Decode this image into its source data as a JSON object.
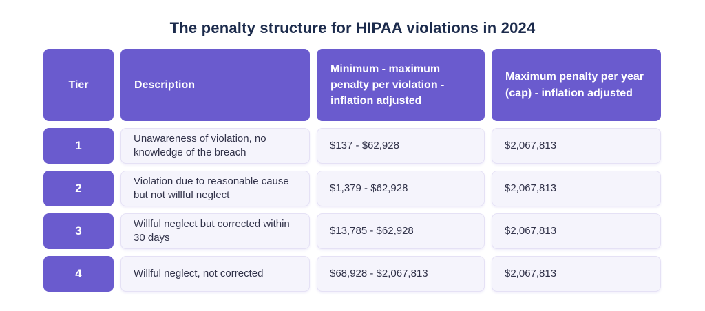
{
  "title": "The penalty structure for HIPAA violations in 2024",
  "colors": {
    "accent_purple": "#6a5bce",
    "cell_bg": "#f5f4fc",
    "cell_border": "#e5e1f5",
    "title_text": "#1c2b4c",
    "body_text": "#32334a"
  },
  "chart_data": {
    "type": "table",
    "title": "The penalty structure for HIPAA violations in 2024",
    "columns": [
      "Tier",
      "Description",
      "Minimum - maximum penalty per violation - inflation adjusted",
      "Maximum penalty per year (cap) - inflation adjusted"
    ],
    "rows": [
      [
        "1",
        "Unawareness of violation, no knowledge of the breach",
        "$137 - $62,928",
        "$2,067,813"
      ],
      [
        "2",
        "Violation due to reasonable cause but not willful neglect",
        "$1,379 - $62,928",
        "$2,067,813"
      ],
      [
        "3",
        "Willful neglect but corrected within 30 days",
        "$13,785 - $62,928",
        "$2,067,813"
      ],
      [
        "4",
        "Willful neglect, not corrected",
        "$68,928 - $2,067,813",
        "$2,067,813"
      ]
    ]
  }
}
